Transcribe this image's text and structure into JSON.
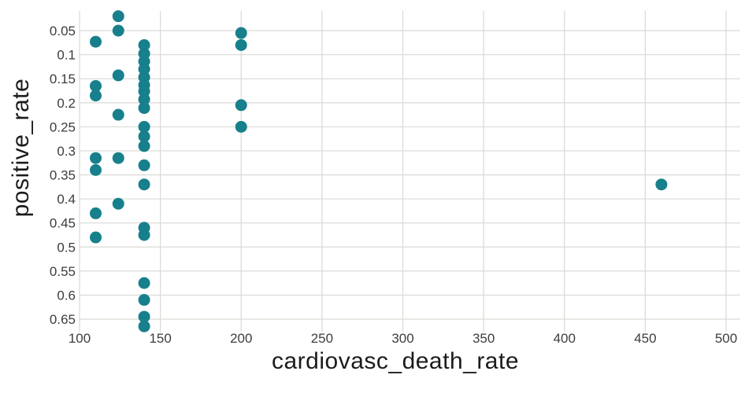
{
  "chart_data": {
    "type": "scatter",
    "title": "",
    "xlabel": "cardiovasc_death_rate",
    "ylabel": "positive_rate",
    "x_ticks": [
      100,
      150,
      200,
      250,
      300,
      350,
      400,
      450,
      500
    ],
    "x_tick_labels": [
      "100",
      "150",
      "200",
      "250",
      "300",
      "350",
      "400",
      "450",
      "500"
    ],
    "y_ticks": [
      0.05,
      0.1,
      0.15,
      0.2,
      0.25,
      0.3,
      0.35,
      0.4,
      0.45,
      0.5,
      0.55,
      0.6,
      0.65
    ],
    "y_tick_labels": [
      "0.05",
      "0.1",
      "0.15",
      "0.2",
      "0.25",
      "0.3",
      "0.35",
      "0.4",
      "0.45",
      "0.5",
      "0.55",
      "0.6",
      "0.65"
    ],
    "xlim": [
      100,
      509
    ],
    "ylim": [
      0.009,
      0.673
    ],
    "y_axis_inverted": true,
    "grid": true,
    "legend": "none",
    "marker_color": "#17808c",
    "marker_radius": 7.5,
    "grid_color": "#d9d9d4",
    "tick_text_color": "#3d3d3d",
    "series": [
      {
        "name": "positive_rate vs cardiovasc_death_rate",
        "points": [
          [
            110,
            0.073
          ],
          [
            110,
            0.165
          ],
          [
            110,
            0.185
          ],
          [
            110,
            0.315
          ],
          [
            110,
            0.34
          ],
          [
            110,
            0.43
          ],
          [
            110,
            0.48
          ],
          [
            124,
            0.02
          ],
          [
            124,
            0.05
          ],
          [
            124,
            0.143
          ],
          [
            124,
            0.225
          ],
          [
            124,
            0.315
          ],
          [
            124,
            0.41
          ],
          [
            140,
            0.08
          ],
          [
            140,
            0.098
          ],
          [
            140,
            0.114
          ],
          [
            140,
            0.13
          ],
          [
            140,
            0.147
          ],
          [
            140,
            0.163
          ],
          [
            140,
            0.176
          ],
          [
            140,
            0.193
          ],
          [
            140,
            0.211
          ],
          [
            140,
            0.25
          ],
          [
            140,
            0.27
          ],
          [
            140,
            0.29
          ],
          [
            140,
            0.33
          ],
          [
            140,
            0.37
          ],
          [
            140,
            0.46
          ],
          [
            140,
            0.475
          ],
          [
            140,
            0.575
          ],
          [
            140,
            0.61
          ],
          [
            140,
            0.645
          ],
          [
            140,
            0.665
          ],
          [
            200,
            0.055
          ],
          [
            200,
            0.08
          ],
          [
            200,
            0.205
          ],
          [
            200,
            0.25
          ],
          [
            460,
            0.37
          ]
        ]
      }
    ]
  }
}
